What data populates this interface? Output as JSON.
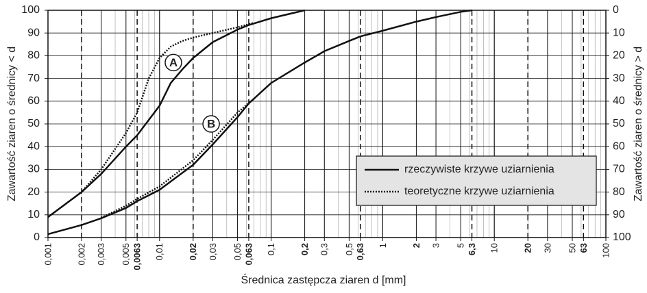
{
  "chart_data": {
    "type": "line",
    "xlabel": "Średnica zastępcza ziaren d [mm]",
    "ylabel": "Zawartość ziaren o średnicy < d",
    "y2label": "Zawartość ziaren o średnicy > d",
    "xscale": "log",
    "xlim": [
      0.001,
      100
    ],
    "ylim": [
      0,
      100
    ],
    "y2lim": [
      100,
      0
    ],
    "minor_grid": true,
    "legend": "lower right",
    "yticks": [
      0,
      10,
      20,
      30,
      40,
      50,
      60,
      70,
      80,
      90,
      100
    ],
    "y2ticks": [
      0,
      10,
      20,
      30,
      40,
      50,
      60,
      70,
      80,
      90,
      100
    ],
    "xticks": [
      {
        "value": 0.001,
        "label": "0,001"
      },
      {
        "value": 0.002,
        "label": "0,002",
        "dashed": true
      },
      {
        "value": 0.003,
        "label": "0,003"
      },
      {
        "value": 0.005,
        "label": "0,005"
      },
      {
        "value": 0.0063,
        "label": "0,0063",
        "bold": true,
        "dashed": true
      },
      {
        "value": 0.01,
        "label": "0,01"
      },
      {
        "value": 0.02,
        "label": "0,02",
        "bold": true,
        "dashed": true
      },
      {
        "value": 0.03,
        "label": "0,03"
      },
      {
        "value": 0.05,
        "label": "0,05"
      },
      {
        "value": 0.063,
        "label": "0,063",
        "bold": true,
        "dashed": true
      },
      {
        "value": 0.1,
        "label": "0,1"
      },
      {
        "value": 0.2,
        "label": "0,2",
        "bold": true
      },
      {
        "value": 0.3,
        "label": "0,3"
      },
      {
        "value": 0.5,
        "label": "0,5"
      },
      {
        "value": 0.63,
        "label": "0,63",
        "bold": true,
        "dashed": true
      },
      1,
      {
        "value": 2,
        "label": "2",
        "bold": true
      },
      3,
      5,
      {
        "value": 6.3,
        "label": "6,3",
        "bold": true,
        "dashed": true
      },
      10,
      {
        "value": 20,
        "label": "20",
        "bold": true,
        "dashed": true
      },
      30,
      50,
      {
        "value": 63,
        "label": "63",
        "bold": true,
        "dashed": true
      },
      100
    ],
    "series": [
      {
        "name": "rzeczywiste krzywe uziarnienia",
        "color": "#111",
        "dash": "solid",
        "curves": [
          {
            "x": [
              0.001,
              0.002,
              0.003,
              0.005,
              0.0063,
              0.01,
              0.0126,
              0.016,
              0.02,
              0.03,
              0.05,
              0.063,
              0.1,
              0.2
            ],
            "values": [
              9,
              20,
              28,
              40,
              45,
              58,
              68,
              74,
              79,
              86,
              91.5,
              93.5,
              96.5,
              100
            ]
          },
          {
            "x": [
              0.001,
              0.002,
              0.003,
              0.005,
              0.0063,
              0.01,
              0.02,
              0.03,
              0.05,
              0.063,
              0.1,
              0.2,
              0.3,
              0.5,
              0.63,
              1,
              2,
              3,
              5,
              6.3
            ],
            "values": [
              1.5,
              5.5,
              8.5,
              13,
              16,
              21,
              32,
              41,
              53,
              59,
              68,
              77,
              82,
              86.5,
              88.5,
              91,
              95,
              97,
              99.3,
              100
            ]
          }
        ]
      },
      {
        "name": "teoretyczne krzywe uziarnienia",
        "color": "#111",
        "dash": "dotted",
        "curves": [
          {
            "x": [
              0.001,
              0.002,
              0.003,
              0.005,
              0.0063,
              0.008,
              0.01,
              0.0126,
              0.016,
              0.02,
              0.03,
              0.05,
              0.07
            ],
            "values": [
              9,
              20,
              30,
              46,
              55,
              70,
              79,
              84,
              86.5,
              88,
              90,
              92.5,
              94.5
            ]
          },
          {
            "x": [
              0.003,
              0.005,
              0.0063,
              0.01,
              0.02,
              0.03,
              0.05,
              0.07
            ],
            "values": [
              8.7,
              14,
              17,
              22.5,
              34,
              43,
              55,
              61
            ]
          }
        ]
      }
    ],
    "annotations": [
      {
        "text": "A",
        "x": 0.0133,
        "y": 77
      },
      {
        "text": "B",
        "x": 0.029,
        "y": 50
      }
    ]
  }
}
